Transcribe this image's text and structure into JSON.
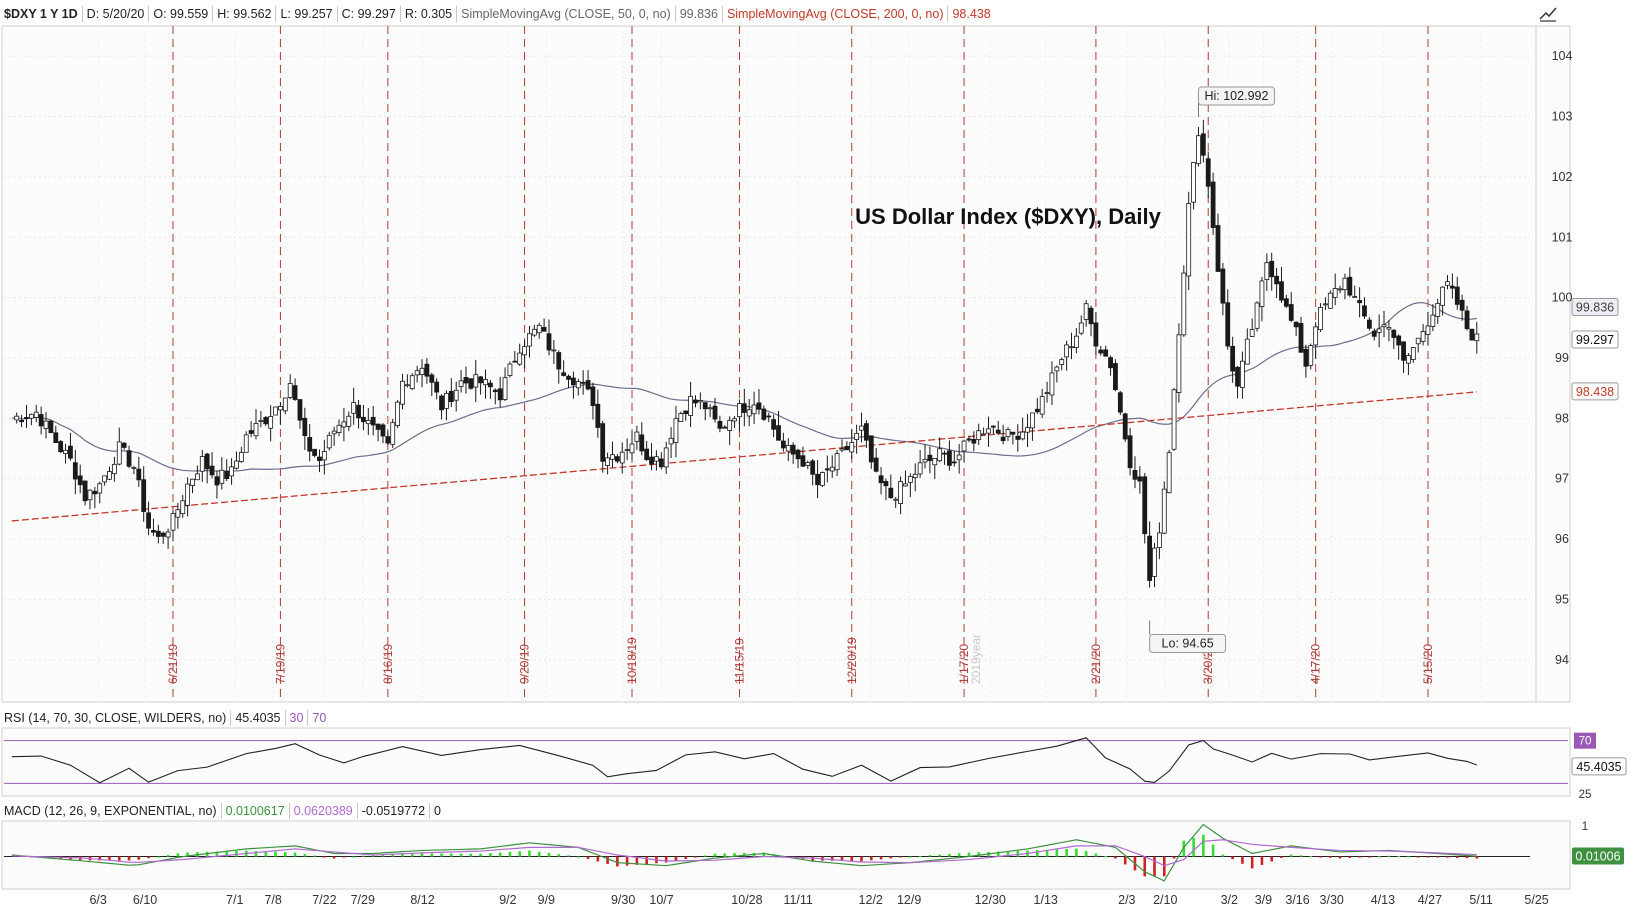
{
  "header": {
    "symbol": "$DXY 1 Y 1D",
    "date": "D: 5/20/20",
    "open": "O: 99.559",
    "high": "H: 99.562",
    "low": "L: 99.257",
    "close": "C: 99.297",
    "range": "R: 0.305",
    "sma50_label": "SimpleMovingAvg (CLOSE, 50, 0, no)",
    "sma50_value": "99.836",
    "sma200_label": "SimpleMovingAvg (CLOSE, 200, 0, no)",
    "sma200_value": "98.438"
  },
  "rsi_header": {
    "label": "RSI (14, 70, 30, CLOSE, WILDERS, no)",
    "value": "45.4035",
    "oversold": "30",
    "overbought": "70"
  },
  "macd_header": {
    "label": "MACD (12, 26, 9, EXPONENTIAL, no)",
    "value": "0.0100617",
    "avg": "0.0620389",
    "diff": "-0.0519772",
    "zero": "0"
  },
  "colors": {
    "candle": "#1a1a1a",
    "sma50": "#6d6d8c",
    "sma200": "#c0392b",
    "expiry_line": "#b03a3a",
    "rsi_bounds": "#9b59b6",
    "macd_line": "#3d9140",
    "macd_avg": "#b06ad0",
    "macd_pos": "#33dd33",
    "macd_neg": "#cc2222"
  },
  "chart_data": {
    "type": "candlestick",
    "title": "US Dollar Index ($DXY), Daily",
    "ylim": [
      93.3,
      104.5
    ],
    "y_ticks": [
      94,
      95,
      96,
      97,
      98,
      99,
      100,
      101,
      102,
      103,
      104
    ],
    "x_tick_labels": [
      "6/3",
      "6/10",
      "7/1",
      "7/8",
      "7/22",
      "7/29",
      "8/12",
      "9/2",
      "9/9",
      "9/30",
      "10/7",
      "10/28",
      "11/11",
      "12/2",
      "12/9",
      "12/30",
      "1/13",
      "2/3",
      "2/10",
      "3/2",
      "3/9",
      "3/16",
      "3/30",
      "4/13",
      "4/27",
      "5/11",
      "5/25"
    ],
    "expiry_labels": [
      "6/21/19",
      "7/19/19",
      "8/16/19",
      "9/20/19",
      "10/18/19",
      "11/15/19",
      "12/20/19",
      "1/17/20",
      "2/21/20",
      "3/20/20",
      "4/17/20",
      "5/15/20"
    ],
    "year_marker": "2019year",
    "annotations": {
      "high": "Hi: 102.992",
      "low": "Lo: 94.65"
    },
    "hi_value": 102.992,
    "lo_value": 94.65,
    "last_price": 99.297,
    "last_price_label": "99.297",
    "sma50_last": 99.836,
    "sma50_last_label": "99.836",
    "sma200_last": 98.438,
    "sma200_last_label": "98.438",
    "close_path": [
      [
        0,
        98.0
      ],
      [
        5,
        98.1
      ],
      [
        10,
        97.5
      ],
      [
        12,
        97.3
      ],
      [
        15,
        96.7
      ],
      [
        18,
        96.9
      ],
      [
        22,
        97.5
      ],
      [
        25,
        97.2
      ],
      [
        28,
        96.2
      ],
      [
        30,
        96.0
      ],
      [
        33,
        96.3
      ],
      [
        36,
        96.9
      ],
      [
        39,
        97.3
      ],
      [
        42,
        97.0
      ],
      [
        45,
        97.1
      ],
      [
        48,
        97.7
      ],
      [
        52,
        98.0
      ],
      [
        55,
        98.3
      ],
      [
        57,
        98.6
      ],
      [
        60,
        97.6
      ],
      [
        63,
        97.3
      ],
      [
        66,
        97.8
      ],
      [
        70,
        98.2
      ],
      [
        74,
        97.8
      ],
      [
        77,
        97.5
      ],
      [
        80,
        98.6
      ],
      [
        84,
        98.9
      ],
      [
        88,
        98.2
      ],
      [
        92,
        98.6
      ],
      [
        96,
        98.6
      ],
      [
        100,
        98.4
      ],
      [
        104,
        99.2
      ],
      [
        108,
        99.5
      ],
      [
        112,
        98.9
      ],
      [
        116,
        98.6
      ],
      [
        119,
        98.3
      ],
      [
        121,
        97.4
      ],
      [
        124,
        97.4
      ],
      [
        128,
        97.7
      ],
      [
        130,
        97.4
      ],
      [
        133,
        97.3
      ],
      [
        136,
        98.0
      ],
      [
        139,
        98.3
      ],
      [
        142,
        98.2
      ],
      [
        145,
        97.8
      ],
      [
        148,
        98.1
      ],
      [
        152,
        98.3
      ],
      [
        155,
        98.0
      ],
      [
        158,
        97.5
      ],
      [
        162,
        97.3
      ],
      [
        165,
        96.9
      ],
      [
        168,
        97.2
      ],
      [
        171,
        97.5
      ],
      [
        174,
        97.8
      ],
      [
        177,
        97.0
      ],
      [
        180,
        96.7
      ],
      [
        183,
        96.9
      ],
      [
        186,
        97.2
      ],
      [
        190,
        97.4
      ],
      [
        193,
        97.3
      ],
      [
        196,
        97.6
      ],
      [
        200,
        97.9
      ],
      [
        204,
        97.7
      ],
      [
        207,
        97.8
      ],
      [
        211,
        98.3
      ],
      [
        215,
        99.0
      ],
      [
        218,
        99.4
      ],
      [
        220,
        99.8
      ],
      [
        222,
        99.3
      ],
      [
        225,
        98.9
      ],
      [
        227,
        98.1
      ],
      [
        229,
        97.3
      ],
      [
        231,
        96.9
      ],
      [
        233,
        95.3
      ],
      [
        235,
        96.2
      ],
      [
        237,
        97.5
      ],
      [
        239,
        99.5
      ],
      [
        241,
        101.5
      ],
      [
        243,
        102.8
      ],
      [
        245,
        101.9
      ],
      [
        247,
        100.5
      ],
      [
        249,
        99.2
      ],
      [
        251,
        98.5
      ],
      [
        253,
        99.2
      ],
      [
        255,
        99.8
      ],
      [
        257,
        100.6
      ],
      [
        259,
        100.3
      ],
      [
        261,
        99.8
      ],
      [
        263,
        99.4
      ],
      [
        265,
        98.9
      ],
      [
        267,
        99.6
      ],
      [
        270,
        100.0
      ],
      [
        273,
        100.3
      ],
      [
        276,
        99.8
      ],
      [
        279,
        99.4
      ],
      [
        282,
        99.6
      ],
      [
        285,
        98.9
      ],
      [
        288,
        99.3
      ],
      [
        291,
        99.8
      ],
      [
        294,
        100.2
      ],
      [
        296,
        99.9
      ],
      [
        298,
        99.5
      ],
      [
        300,
        99.3
      ]
    ],
    "rsi_series": {
      "name": "RSI",
      "values": [
        [
          0,
          55
        ],
        [
          6,
          57
        ],
        [
          12,
          45
        ],
        [
          18,
          32
        ],
        [
          24,
          44
        ],
        [
          28,
          32
        ],
        [
          34,
          40
        ],
        [
          40,
          47
        ],
        [
          48,
          58
        ],
        [
          54,
          64
        ],
        [
          58,
          69
        ],
        [
          63,
          56
        ],
        [
          68,
          48
        ],
        [
          72,
          55
        ],
        [
          80,
          66
        ],
        [
          88,
          58
        ],
        [
          96,
          62
        ],
        [
          104,
          64
        ],
        [
          112,
          54
        ],
        [
          119,
          45
        ],
        [
          122,
          36
        ],
        [
          126,
          38
        ],
        [
          132,
          44
        ],
        [
          138,
          55
        ],
        [
          144,
          60
        ],
        [
          150,
          54
        ],
        [
          156,
          56
        ],
        [
          162,
          45
        ],
        [
          168,
          36
        ],
        [
          174,
          46
        ],
        [
          180,
          34
        ],
        [
          186,
          43
        ],
        [
          192,
          46
        ],
        [
          200,
          52
        ],
        [
          208,
          58
        ],
        [
          214,
          66
        ],
        [
          220,
          73
        ],
        [
          224,
          55
        ],
        [
          229,
          44
        ],
        [
          232,
          34
        ],
        [
          234,
          29
        ],
        [
          237,
          40
        ],
        [
          241,
          64
        ],
        [
          244,
          70
        ],
        [
          246,
          63
        ],
        [
          250,
          58
        ],
        [
          254,
          52
        ],
        [
          258,
          60
        ],
        [
          262,
          54
        ],
        [
          268,
          58
        ],
        [
          274,
          56
        ],
        [
          278,
          50
        ],
        [
          284,
          57
        ],
        [
          290,
          58
        ],
        [
          294,
          54
        ],
        [
          298,
          52
        ],
        [
          300,
          45.4
        ]
      ]
    },
    "rsi_levels": {
      "overbought": 70,
      "oversold": 30
    },
    "rsi_scale_labels": [
      "70",
      "25"
    ],
    "rsi_value_label": "45.4035",
    "macd_series": [
      {
        "name": "MACD",
        "values": [
          [
            0,
            0.05
          ],
          [
            15,
            -0.15
          ],
          [
            25,
            -0.3
          ],
          [
            35,
            0.0
          ],
          [
            48,
            0.25
          ],
          [
            58,
            0.35
          ],
          [
            66,
            0.1
          ],
          [
            74,
            0.1
          ],
          [
            84,
            0.2
          ],
          [
            96,
            0.25
          ],
          [
            106,
            0.45
          ],
          [
            116,
            0.3
          ],
          [
            124,
            -0.2
          ],
          [
            134,
            -0.3
          ],
          [
            144,
            -0.05
          ],
          [
            154,
            0.1
          ],
          [
            164,
            -0.15
          ],
          [
            174,
            -0.3
          ],
          [
            184,
            -0.2
          ],
          [
            196,
            0.0
          ],
          [
            208,
            0.25
          ],
          [
            218,
            0.55
          ],
          [
            226,
            0.3
          ],
          [
            232,
            -0.5
          ],
          [
            236,
            -0.8
          ],
          [
            240,
            0.3
          ],
          [
            244,
            1.05
          ],
          [
            248,
            0.6
          ],
          [
            254,
            0.1
          ],
          [
            262,
            0.35
          ],
          [
            272,
            0.15
          ],
          [
            282,
            0.2
          ],
          [
            292,
            0.1
          ],
          [
            300,
            0.01
          ]
        ]
      },
      {
        "name": "Avg",
        "values": [
          [
            0,
            0.02
          ],
          [
            15,
            -0.05
          ],
          [
            25,
            -0.2
          ],
          [
            35,
            -0.1
          ],
          [
            48,
            0.1
          ],
          [
            58,
            0.25
          ],
          [
            66,
            0.15
          ],
          [
            74,
            0.05
          ],
          [
            84,
            0.12
          ],
          [
            96,
            0.18
          ],
          [
            106,
            0.3
          ],
          [
            116,
            0.3
          ],
          [
            124,
            0.05
          ],
          [
            134,
            -0.15
          ],
          [
            144,
            -0.12
          ],
          [
            154,
            0.0
          ],
          [
            164,
            -0.05
          ],
          [
            174,
            -0.18
          ],
          [
            184,
            -0.2
          ],
          [
            196,
            -0.1
          ],
          [
            208,
            0.1
          ],
          [
            218,
            0.35
          ],
          [
            226,
            0.35
          ],
          [
            232,
            0.0
          ],
          [
            236,
            -0.3
          ],
          [
            240,
            -0.1
          ],
          [
            244,
            0.5
          ],
          [
            248,
            0.55
          ],
          [
            254,
            0.4
          ],
          [
            262,
            0.3
          ],
          [
            272,
            0.2
          ],
          [
            282,
            0.18
          ],
          [
            292,
            0.12
          ],
          [
            300,
            0.06
          ]
        ]
      }
    ],
    "macd_scale_labels": [
      "1"
    ],
    "macd_value_label": "0.01006"
  }
}
